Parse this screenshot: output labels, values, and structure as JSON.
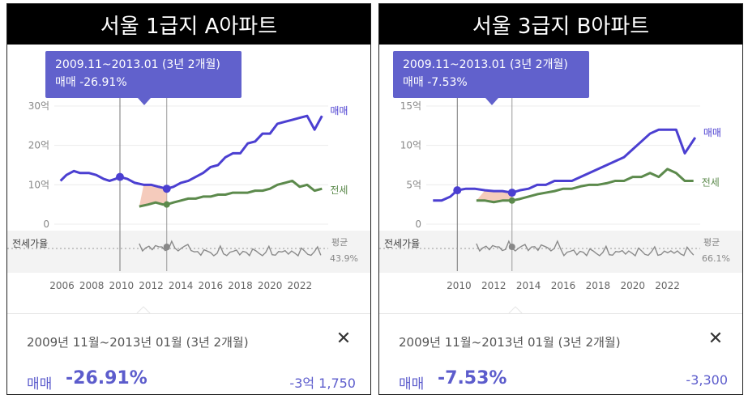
{
  "panels": [
    {
      "title": "서울 1급지 A아파트",
      "tooltip": {
        "period": "2009.11~2013.01 (3년 2개월)",
        "change": "매매 -26.91%"
      },
      "bottom": {
        "period": "2009년 11월~2013년 01월 (3년 2개월)",
        "close": "✕",
        "label": "매매",
        "pct": "-26.91%",
        "amount": "-3억 1,750"
      }
    },
    {
      "title": "서울 3급지 B아파트",
      "tooltip": {
        "period": "2009.11~2013.01 (3년 2개월)",
        "change": "매매 -7.53%"
      },
      "bottom": {
        "period": "2009년 11월~2013년 01월 (3년 2개월)",
        "close": "✕",
        "label": "매매",
        "pct": "-7.53%",
        "amount": "-3,300"
      }
    }
  ],
  "chart_data": [
    {
      "type": "line",
      "title": "서울 1급지 A아파트",
      "x_ticks": [
        "2006",
        "2008",
        "2010",
        "2012",
        "2014",
        "2016",
        "2018",
        "2020",
        "2022"
      ],
      "x_range": [
        2005.7,
        2023.7
      ],
      "y_ticks": [
        "0",
        "10억",
        "20억",
        "30억"
      ],
      "ylim": [
        0,
        30
      ],
      "unit": "억",
      "highlight": {
        "start": 2009.9,
        "end": 2013.05
      },
      "series": [
        {
          "name": "매매",
          "color": "#4b3fd1",
          "x": [
            2005.9,
            2006.3,
            2006.8,
            2007.2,
            2007.8,
            2008.3,
            2008.8,
            2009.2,
            2009.6,
            2009.9,
            2010.4,
            2010.9,
            2011.5,
            2012.0,
            2012.5,
            2013.05,
            2013.5,
            2014.0,
            2014.5,
            2015.0,
            2015.5,
            2016.0,
            2016.5,
            2017.0,
            2017.5,
            2018.0,
            2018.5,
            2019.0,
            2019.5,
            2020.0,
            2020.5,
            2021.0,
            2021.5,
            2022.0,
            2022.5,
            2023.0,
            2023.5
          ],
          "y": [
            11,
            12.5,
            13.5,
            13,
            13,
            12.5,
            11.5,
            11,
            11.5,
            12,
            11.5,
            10.5,
            10,
            10,
            9.5,
            9,
            9.5,
            10.5,
            11,
            12,
            13,
            14.5,
            15,
            17,
            18,
            18,
            20.5,
            21,
            23,
            23,
            25.5,
            26,
            26.5,
            27,
            27.5,
            24,
            27.5
          ]
        },
        {
          "name": "전세",
          "color": "#5c8a4c",
          "x": [
            2011.2,
            2011.8,
            2012.3,
            2012.8,
            2013.05,
            2013.5,
            2014.0,
            2014.5,
            2015.0,
            2015.5,
            2016.0,
            2016.5,
            2017.0,
            2017.5,
            2018.0,
            2018.5,
            2019.0,
            2019.5,
            2020.0,
            2020.5,
            2021.0,
            2021.5,
            2022.0,
            2022.5,
            2023.0,
            2023.5
          ],
          "y": [
            4.5,
            5,
            5.5,
            5,
            5,
            5.5,
            6,
            6.5,
            6.5,
            7,
            7,
            7.5,
            7.5,
            8,
            8,
            8,
            8.5,
            8.5,
            9,
            10,
            10.5,
            11,
            9.5,
            10,
            8.5,
            9
          ]
        }
      ],
      "ratio": {
        "label": "전세가율",
        "avg_label": "평균",
        "avg_value": "43.9%"
      }
    },
    {
      "type": "line",
      "title": "서울 3급지 B아파트",
      "x_ticks": [
        "2010",
        "2012",
        "2014",
        "2016",
        "2018",
        "2020",
        "2022"
      ],
      "x_range": [
        2008.3,
        2023.7
      ],
      "y_ticks": [
        "0",
        "5억",
        "10억",
        "15억"
      ],
      "ylim": [
        0,
        15
      ],
      "unit": "억",
      "highlight": {
        "start": 2009.9,
        "end": 2013.05
      },
      "series": [
        {
          "name": "매매",
          "color": "#4b3fd1",
          "x": [
            2008.5,
            2009.0,
            2009.5,
            2009.9,
            2010.4,
            2010.9,
            2011.5,
            2012.0,
            2012.5,
            2013.05,
            2013.5,
            2014.0,
            2014.5,
            2015.0,
            2015.5,
            2016.0,
            2016.5,
            2017.0,
            2017.5,
            2018.0,
            2018.5,
            2019.0,
            2019.5,
            2020.0,
            2020.5,
            2021.0,
            2021.5,
            2022.0,
            2022.5,
            2023.0,
            2023.3,
            2023.6
          ],
          "y": [
            3,
            3,
            3.5,
            4.3,
            4.5,
            4.5,
            4.3,
            4.2,
            4.2,
            4.0,
            4.3,
            4.5,
            5,
            5,
            5.5,
            5.5,
            5.5,
            6,
            6.5,
            7,
            7.5,
            8,
            8.5,
            9.5,
            10.5,
            11.5,
            12,
            12,
            12,
            9,
            10,
            11
          ]
        },
        {
          "name": "전세",
          "color": "#5c8a4c",
          "x": [
            2011.0,
            2011.5,
            2012.0,
            2012.5,
            2013.05,
            2013.5,
            2014.0,
            2014.5,
            2015.0,
            2015.5,
            2016.0,
            2016.5,
            2017.0,
            2017.5,
            2018.0,
            2018.5,
            2019.0,
            2019.5,
            2020.0,
            2020.5,
            2021.0,
            2021.5,
            2022.0,
            2022.5,
            2023.0,
            2023.5
          ],
          "y": [
            3,
            3,
            2.8,
            3,
            3,
            3.2,
            3.5,
            3.8,
            4,
            4.2,
            4.5,
            4.5,
            4.8,
            5,
            5,
            5.2,
            5.5,
            5.5,
            6,
            6,
            6.5,
            6,
            7,
            6.5,
            5.5,
            5.5
          ]
        }
      ],
      "ratio": {
        "label": "전세가율",
        "avg_label": "평균",
        "avg_value": "66.1%"
      }
    }
  ]
}
